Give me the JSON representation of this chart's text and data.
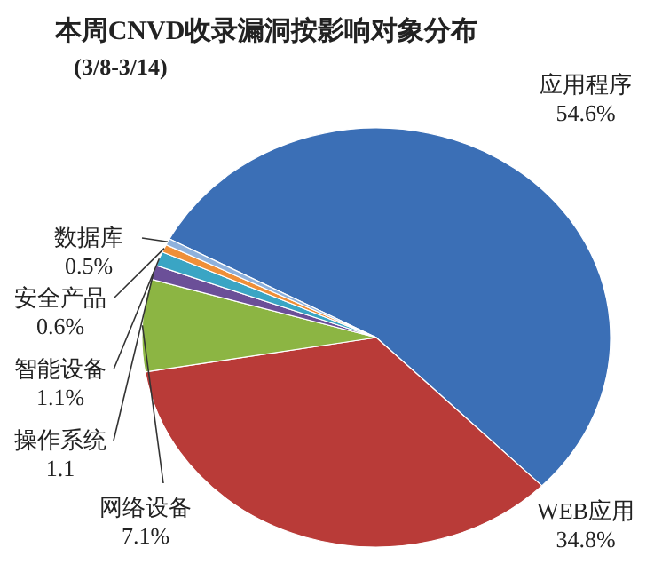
{
  "chart_data": {
    "type": "pie",
    "title": "本周CNVD收录漏洞按影响对象分布",
    "subtitle": "(3/8-3/14)",
    "categories": [
      "应用程序",
      "WEB应用",
      "网络设备",
      "操作系统",
      "智能设备",
      "安全产品",
      "数据库"
    ],
    "values": [
      54.6,
      34.8,
      7.1,
      1.1,
      1.1,
      0.6,
      0.5
    ],
    "value_labels": [
      "54.6%",
      "34.8%",
      "7.1%",
      "1.1",
      "1.1%",
      "0.6%",
      "0.5%"
    ],
    "colors": [
      "#3b6fb6",
      "#b93b38",
      "#8cb543",
      "#6b4f98",
      "#3aa5c4",
      "#ef8f38",
      "#8eb1dc"
    ]
  }
}
